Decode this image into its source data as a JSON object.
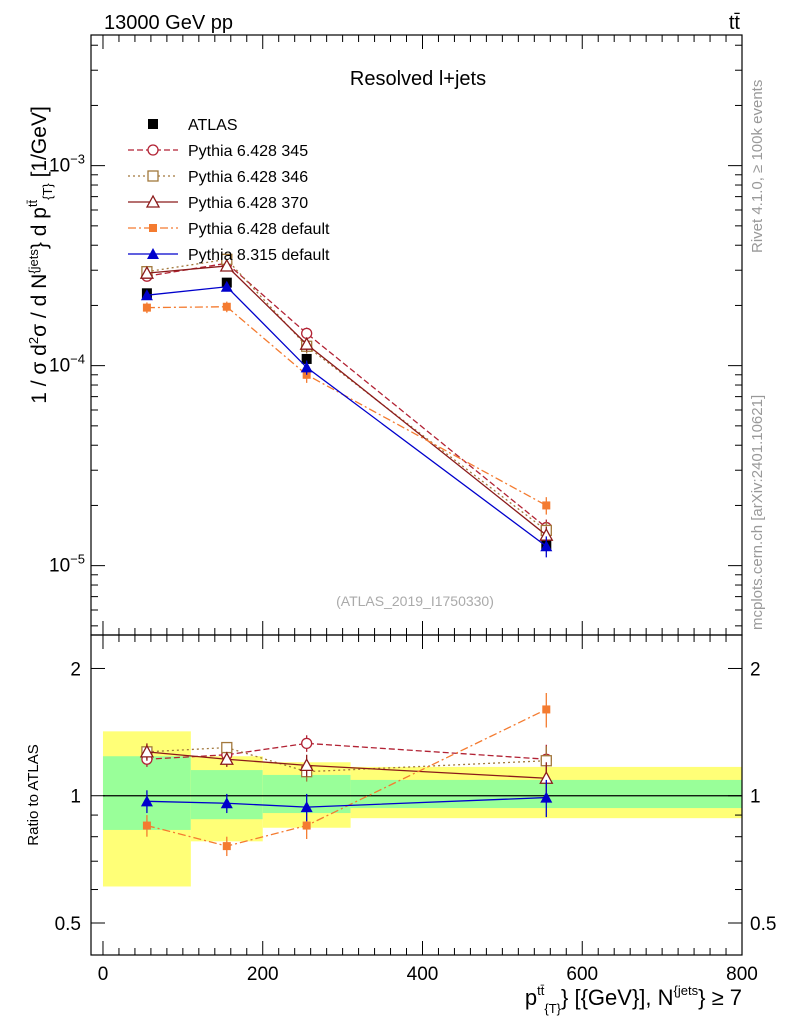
{
  "header": {
    "left_label": "13000 GeV pp",
    "right_label": "tt̄",
    "side_version": "Rivet 4.1.0, ≥ 100k events",
    "side_source": "mcplots.cern.ch [arXiv:2401.10621]"
  },
  "chart_data": [
    {
      "type": "line",
      "panel": "main",
      "title": "Resolved l+jets",
      "watermark": "(ATLAS_2019_I1750330)",
      "ylabel": "1 / σ d²σ / d N^{jets} d p_T^{tt̄} [1/GeV]",
      "yscale": "log",
      "ylim": [
        4.5e-06,
        0.0045
      ],
      "xlim": [
        -15,
        800
      ],
      "y_tick_labels": [
        {
          "value": 0.001,
          "mant": "10",
          "exp": "−3"
        },
        {
          "value": 0.0001,
          "mant": "10",
          "exp": "−4"
        },
        {
          "value": 1e-05,
          "mant": "10",
          "exp": "−5"
        }
      ],
      "series": [
        {
          "name": "ATLAS",
          "style": "data",
          "color": "#000000",
          "marker": "square-filled",
          "x": [
            55,
            155,
            255,
            555
          ],
          "y": [
            0.00023,
            0.00026,
            0.000108,
            1.28e-05
          ],
          "err": [
            1.2e-05,
            1.2e-05,
            6e-06,
            1e-06
          ]
        },
        {
          "name": "Pythia 6.428 345",
          "color": "#b22234",
          "dash": "6,3",
          "marker": "circle-open",
          "x": [
            55,
            155,
            255,
            555
          ],
          "y": [
            0.00028,
            0.000325,
            0.000145,
            1.55e-05
          ],
          "err": [
            1.5e-05,
            1.5e-05,
            1e-05,
            1.5e-06
          ]
        },
        {
          "name": "Pythia 6.428 346",
          "color": "#a2783c",
          "dash": "2,3",
          "marker": "square-open",
          "x": [
            55,
            155,
            255,
            555
          ],
          "y": [
            0.000295,
            0.00034,
            0.000125,
            1.5e-05
          ],
          "err": [
            1.5e-05,
            1.5e-05,
            1e-05,
            1.5e-06
          ]
        },
        {
          "name": "Pythia 6.428 370",
          "color": "#8b1a1a",
          "dash": "",
          "marker": "triangle-open",
          "x": [
            55,
            155,
            255,
            555
          ],
          "y": [
            0.00029,
            0.000315,
            0.000128,
            1.42e-05
          ],
          "err": [
            1.5e-05,
            1.5e-05,
            1e-05,
            1.5e-06
          ]
        },
        {
          "name": "Pythia 6.428 default",
          "color": "#f47b30",
          "dash": "8,3,2,3",
          "marker": "square-filled-small",
          "x": [
            55,
            155,
            255,
            555
          ],
          "y": [
            0.000195,
            0.000197,
            9e-05,
            2e-05
          ],
          "err": [
            1.2e-05,
            1.2e-05,
            8e-06,
            2e-06
          ]
        },
        {
          "name": "Pythia 8.315 default",
          "color": "#0000cc",
          "dash": "",
          "marker": "triangle-filled",
          "x": [
            55,
            155,
            255,
            555
          ],
          "y": [
            0.000225,
            0.000248,
            9.8e-05,
            1.25e-05
          ],
          "err": [
            1e-05,
            1e-05,
            8e-06,
            1.5e-06
          ]
        }
      ]
    },
    {
      "type": "line",
      "panel": "ratio",
      "ylabel": "Ratio to ATLAS",
      "xlabel_main": "p",
      "xlabel_sup": "tt̄",
      "xlabel_sub": "{T}",
      "xlabel_rest": "} [{GeV}], N",
      "xlabel_sup2": "{jets",
      "xlabel_end": "} ≥ 7",
      "yscale": "log",
      "ylim": [
        0.42,
        2.4
      ],
      "y_ticks": [
        0.5,
        1,
        2
      ],
      "y_tick_labels": [
        "0.5",
        "1",
        "2"
      ],
      "x_ticks": [
        0,
        200,
        400,
        600,
        800
      ],
      "x_tick_labels": [
        "0",
        "200",
        "400",
        "600",
        "800"
      ],
      "bands": {
        "x_edges": [
          0,
          110,
          200,
          310,
          800
        ],
        "yellow_lo": [
          0.61,
          0.78,
          0.84,
          0.885
        ],
        "yellow_hi": [
          1.42,
          1.24,
          1.2,
          1.17
        ],
        "green_lo": [
          0.83,
          0.88,
          0.91,
          0.935
        ],
        "green_hi": [
          1.24,
          1.15,
          1.12,
          1.09
        ],
        "yellow_color": "#ffff77",
        "green_color": "#99ff99"
      },
      "series": [
        {
          "name": "Pythia 6.428 345",
          "color": "#b22234",
          "dash": "6,3",
          "marker": "circle-open",
          "x": [
            55,
            155,
            255,
            555
          ],
          "y": [
            1.22,
            1.25,
            1.33,
            1.22
          ],
          "err": [
            0.05,
            0.04,
            0.06,
            0.1
          ]
        },
        {
          "name": "Pythia 6.428 346",
          "color": "#a2783c",
          "dash": "2,3",
          "marker": "square-open",
          "x": [
            55,
            155,
            255,
            555
          ],
          "y": [
            1.27,
            1.3,
            1.14,
            1.21
          ],
          "err": [
            0.05,
            0.04,
            0.06,
            0.1
          ]
        },
        {
          "name": "Pythia 6.428 370",
          "color": "#8b1a1a",
          "dash": "",
          "marker": "triangle-open",
          "x": [
            55,
            155,
            255,
            555
          ],
          "y": [
            1.27,
            1.22,
            1.18,
            1.1
          ],
          "err": [
            0.06,
            0.05,
            0.07,
            0.1
          ]
        },
        {
          "name": "Pythia 6.428 default",
          "color": "#f47b30",
          "dash": "8,3,2,3",
          "marker": "square-filled-small",
          "x": [
            55,
            155,
            255,
            555
          ],
          "y": [
            0.85,
            0.76,
            0.85,
            1.6
          ],
          "err": [
            0.05,
            0.04,
            0.06,
            0.15
          ]
        },
        {
          "name": "Pythia 8.315 default",
          "color": "#0000cc",
          "dash": "",
          "marker": "triangle-filled",
          "x": [
            55,
            155,
            255,
            555
          ],
          "y": [
            0.97,
            0.96,
            0.94,
            0.99
          ],
          "err": [
            0.06,
            0.05,
            0.07,
            0.1
          ]
        }
      ]
    }
  ]
}
